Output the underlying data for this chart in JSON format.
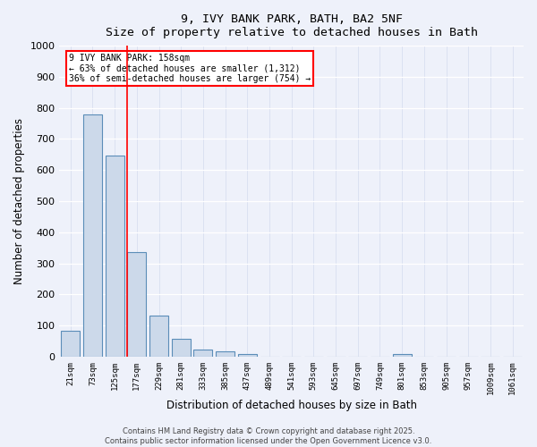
{
  "title_line1": "9, IVY BANK PARK, BATH, BA2 5NF",
  "title_line2": "Size of property relative to detached houses in Bath",
  "xlabel": "Distribution of detached houses by size in Bath",
  "ylabel": "Number of detached properties",
  "bar_color": "#ccd9ea",
  "bar_edge_color": "#5b8db8",
  "background_color": "#eef1fa",
  "grid_color": "#d8dff0",
  "categories": [
    "21sqm",
    "73sqm",
    "125sqm",
    "177sqm",
    "229sqm",
    "281sqm",
    "333sqm",
    "385sqm",
    "437sqm",
    "489sqm",
    "541sqm",
    "593sqm",
    "645sqm",
    "697sqm",
    "749sqm",
    "801sqm",
    "853sqm",
    "905sqm",
    "957sqm",
    "1009sqm",
    "1061sqm"
  ],
  "values": [
    83,
    780,
    648,
    335,
    132,
    58,
    22,
    17,
    8,
    0,
    0,
    0,
    0,
    0,
    0,
    8,
    0,
    0,
    0,
    0,
    0
  ],
  "ylim": [
    0,
    1000
  ],
  "yticks": [
    0,
    100,
    200,
    300,
    400,
    500,
    600,
    700,
    800,
    900,
    1000
  ],
  "red_line_x": 2.57,
  "annotation_text_line1": "9 IVY BANK PARK: 158sqm",
  "annotation_text_line2": "← 63% of detached houses are smaller (1,312)",
  "annotation_text_line3": "36% of semi-detached houses are larger (754) →",
  "footer_line1": "Contains HM Land Registry data © Crown copyright and database right 2025.",
  "footer_line2": "Contains public sector information licensed under the Open Government Licence v3.0."
}
